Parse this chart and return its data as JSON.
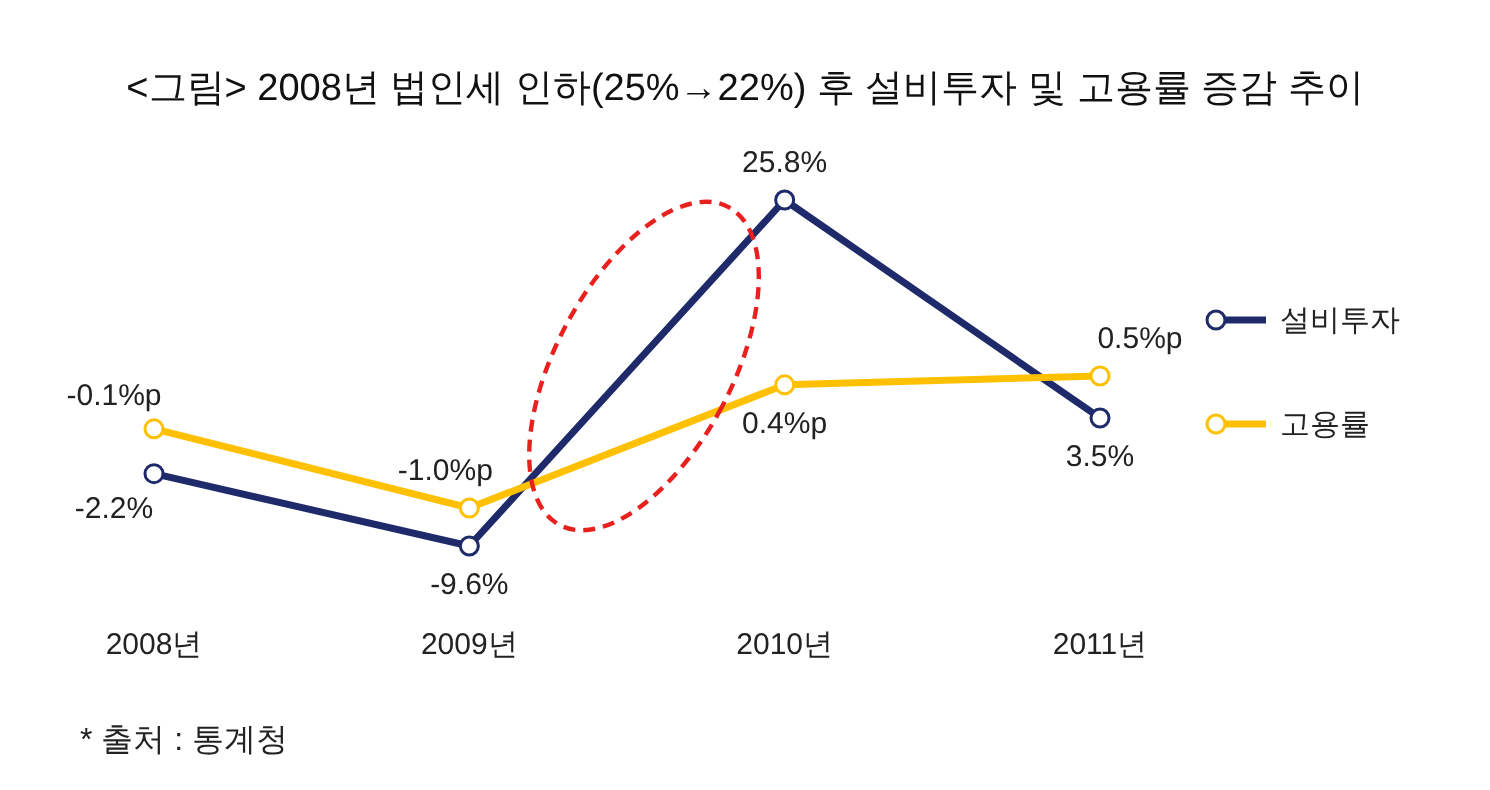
{
  "chart_data": {
    "type": "line",
    "title": "<그림> 2008년 법인세 인하(25%→22%) 후 설비투자 및 고용률 증감 추이",
    "categories": [
      "2008년",
      "2009년",
      "2010년",
      "2011년"
    ],
    "series": [
      {
        "name": "설비투자",
        "color": "#1f2a6b",
        "values": [
          -2.2,
          -9.6,
          25.8,
          3.5
        ],
        "value_labels": [
          "-2.2%",
          "-9.6%",
          "25.8%",
          "3.5%"
        ]
      },
      {
        "name": "고용률",
        "color": "#ffc000",
        "axis": "y2",
        "values": [
          -0.1,
          -1.0,
          0.4,
          0.5
        ],
        "value_labels": [
          "-0.1%p",
          "-1.0%p",
          "0.4%p",
          "0.5%p"
        ]
      }
    ],
    "marker": "circle",
    "line_style": "solid",
    "legend": "right",
    "annotations": [
      "* 출처 : 통계청"
    ]
  }
}
